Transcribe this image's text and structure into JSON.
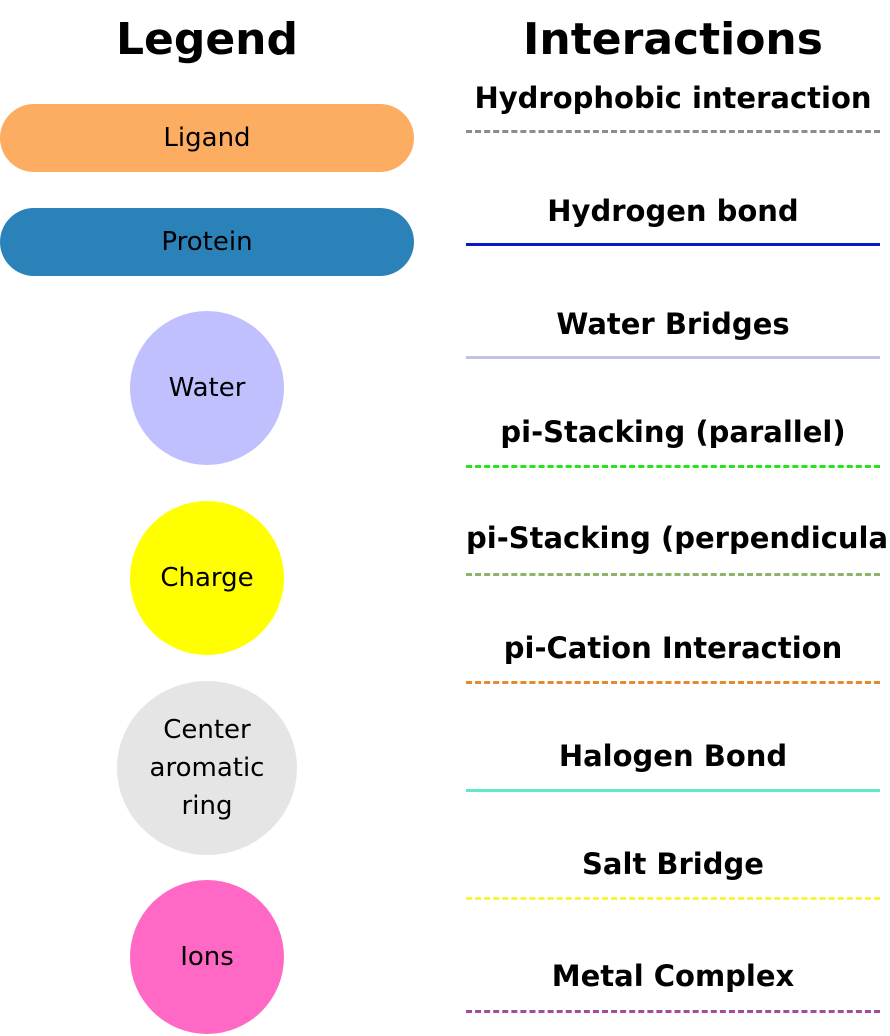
{
  "legend": {
    "title": "Legend",
    "items": [
      {
        "label": "Ligand",
        "color": "#FDAD62"
      },
      {
        "label": "Protein",
        "color": "#2B82B9"
      },
      {
        "label": "Water",
        "color": "#C0C0FF"
      },
      {
        "label": "Charge",
        "color": "#FFFF00"
      },
      {
        "label": "Center aromatic ring",
        "color": "#E5E5E5"
      },
      {
        "label": "Ions",
        "color": "#FF68C4"
      }
    ]
  },
  "interactions": {
    "title": "Interactions",
    "items": [
      {
        "label": "Hydrophobic interaction",
        "color": "#8C8C8C",
        "style": "dashed"
      },
      {
        "label": "Hydrogen bond",
        "color": "#0A19C8",
        "style": "solid"
      },
      {
        "label": "Water Bridges",
        "color": "#BFC3E8",
        "style": "solid"
      },
      {
        "label": "pi-Stacking (parallel)",
        "color": "#25E41B",
        "style": "dashed"
      },
      {
        "label": "pi-Stacking (perpendicular)",
        "color": "#8CB46B",
        "style": "dashed"
      },
      {
        "label": "pi-Cation Interaction",
        "color": "#E5892D",
        "style": "dashed"
      },
      {
        "label": "Halogen Bond",
        "color": "#5CEBC8",
        "style": "solid"
      },
      {
        "label": "Salt Bridge",
        "color": "#F5F542",
        "style": "dashed"
      },
      {
        "label": "Metal Complex",
        "color": "#A04DA0",
        "style": "dashed"
      }
    ]
  }
}
